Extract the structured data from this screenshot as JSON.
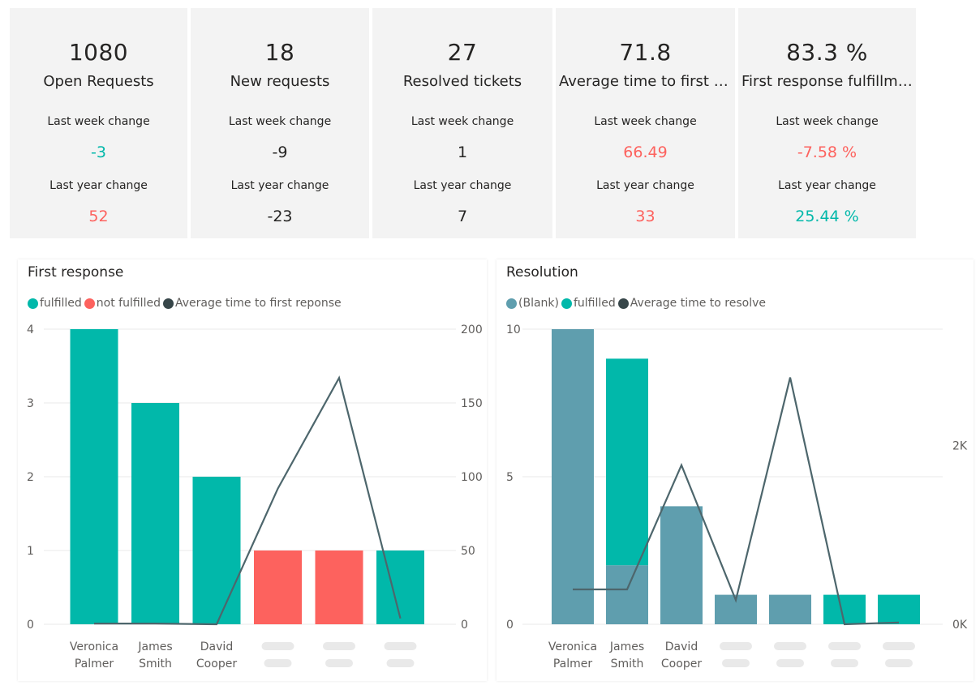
{
  "colors": {
    "fulfilled": "#01b8aa",
    "not_fulfilled": "#fd625e",
    "blank": "#5f9eae",
    "line": "#374649",
    "positive": "#01b8aa",
    "negative": "#fd625e",
    "neutral": "#252423"
  },
  "kpis": [
    {
      "value": "1080",
      "label": "Open Requests",
      "week_label": "Last week change",
      "week_value": "-3",
      "week_status": "positive",
      "year_label": "Last year change",
      "year_value": "52",
      "year_status": "negative"
    },
    {
      "value": "18",
      "label": "New requests",
      "week_label": "Last week change",
      "week_value": "-9",
      "week_status": "neutral",
      "year_label": "Last year change",
      "year_value": "-23",
      "year_status": "neutral"
    },
    {
      "value": "27",
      "label": "Resolved tickets",
      "week_label": "Last week change",
      "week_value": "1",
      "week_status": "neutral",
      "year_label": "Last year change",
      "year_value": "7",
      "year_status": "neutral"
    },
    {
      "value": "71.8",
      "label": "Average time to first r...",
      "week_label": "Last week change",
      "week_value": "66.49",
      "week_status": "negative",
      "year_label": "Last year change",
      "year_value": "33",
      "year_status": "negative"
    },
    {
      "value": "83.3 %",
      "label": "First response fulfillme...",
      "week_label": "Last week change",
      "week_value": "-7.58 %",
      "week_status": "negative",
      "year_label": "Last year change",
      "year_value": "25.44 %",
      "year_status": "positive"
    }
  ],
  "chart_data": [
    {
      "type": "bar",
      "title": "First response",
      "legend": [
        {
          "name": "fulfilled",
          "color": "#01b8aa"
        },
        {
          "name": "not fulfilled",
          "color": "#fd625e"
        },
        {
          "name": "Average time to first reponse",
          "color": "#374649"
        }
      ],
      "categories": [
        "Veronica Palmer",
        "James Smith",
        "David Cooper",
        "",
        "",
        ""
      ],
      "series": [
        {
          "name": "fulfilled",
          "values": [
            4,
            3,
            2,
            0,
            0,
            1
          ]
        },
        {
          "name": "not fulfilled",
          "values": [
            0,
            0,
            0,
            1,
            1,
            0
          ]
        },
        {
          "name": "Average time to first reponse",
          "values": [
            0.5,
            0.5,
            0,
            92,
            167,
            4
          ]
        }
      ],
      "ylim": [
        0,
        4
      ],
      "y_ticks": [
        "0",
        "1",
        "2",
        "3",
        "4"
      ],
      "y2lim": [
        0,
        200
      ],
      "y2_ticks": [
        "0",
        "50",
        "100",
        "150",
        "200"
      ],
      "grid": true,
      "legend_position": "top-left"
    },
    {
      "type": "bar",
      "title": "Resolution",
      "legend": [
        {
          "name": "(Blank)",
          "color": "#5f9eae"
        },
        {
          "name": "fulfilled",
          "color": "#01b8aa"
        },
        {
          "name": "Average time to resolve",
          "color": "#374649"
        }
      ],
      "categories": [
        "Veronica Palmer",
        "James Smith",
        "David Cooper",
        "",
        "",
        "",
        ""
      ],
      "series": [
        {
          "name": "(Blank)",
          "values": [
            10,
            2,
            4,
            1,
            1,
            0,
            0
          ]
        },
        {
          "name": "fulfilled",
          "values": [
            0,
            7,
            0,
            0,
            0,
            1,
            1
          ]
        },
        {
          "name": "Average time to resolve",
          "values": [
            390,
            390,
            1780,
            270,
            2760,
            0,
            20
          ]
        }
      ],
      "ylim": [
        0,
        10
      ],
      "y_ticks": [
        "0",
        "5",
        "10"
      ],
      "y2lim": [
        0,
        3300
      ],
      "y2_ticks": [
        {
          "label": "0K",
          "value": 0
        },
        {
          "label": "2K",
          "value": 2000
        }
      ],
      "grid": true,
      "legend_position": "top-left"
    }
  ]
}
